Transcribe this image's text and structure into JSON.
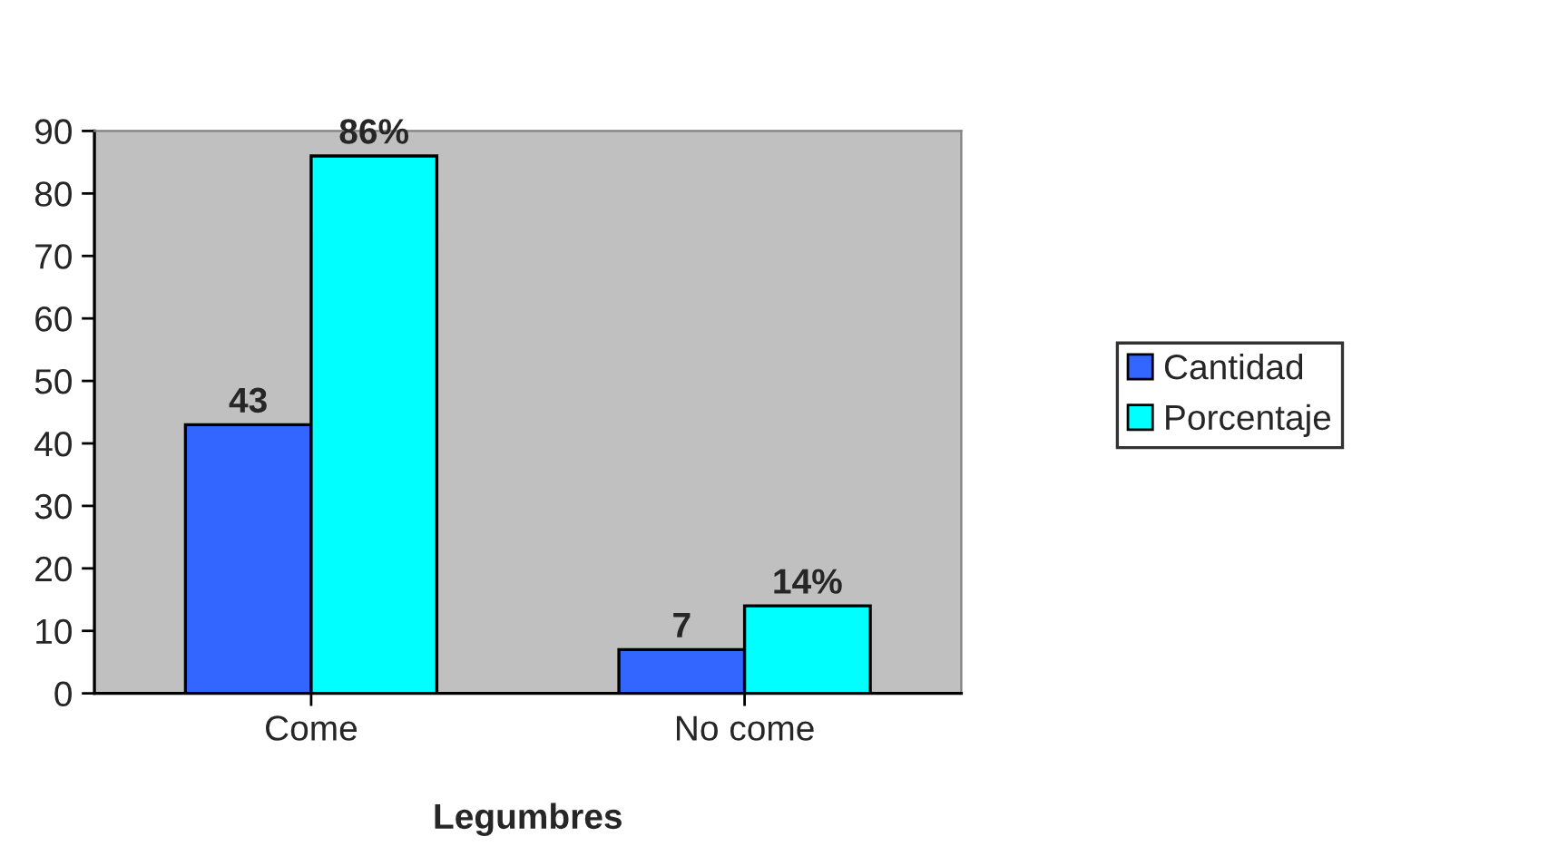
{
  "chart_data": {
    "type": "bar",
    "xlabel": "Legumbres",
    "categories": [
      "Come",
      "No come"
    ],
    "series": [
      {
        "name": "Cantidad",
        "color": "#3366ff",
        "values": [
          43,
          7
        ],
        "value_labels": [
          "43",
          "7"
        ]
      },
      {
        "name": "Porcentaje",
        "color": "#00ffff",
        "values": [
          86,
          14
        ],
        "value_labels": [
          "86%",
          "14%"
        ]
      }
    ],
    "ylim": [
      0,
      90
    ],
    "yticks": [
      0,
      10,
      20,
      30,
      40,
      50,
      60,
      70,
      80,
      90
    ],
    "grid": false,
    "legend": "right"
  }
}
